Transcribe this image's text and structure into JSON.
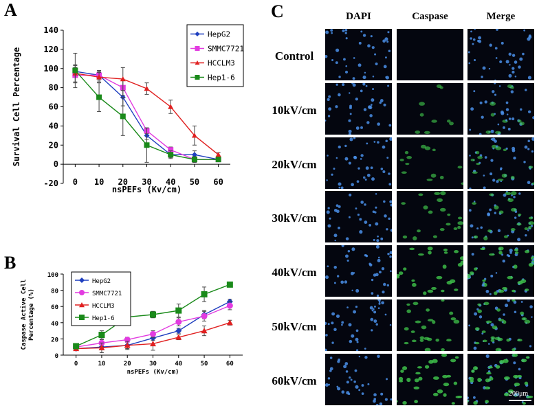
{
  "panel_labels": {
    "a": "A",
    "b": "B",
    "c": "C"
  },
  "chart_data": [
    {
      "type": "line",
      "panel": "A",
      "xlabel": "nsPEFs (Kv/cm)",
      "ylabel": "Survival Cell Percentage",
      "x": [
        0,
        10,
        20,
        30,
        40,
        50,
        60
      ],
      "xlim": [
        -5,
        65
      ],
      "ylim": [
        -20,
        140
      ],
      "yticks": [
        -20,
        0,
        20,
        40,
        60,
        80,
        100,
        120,
        140
      ],
      "legend_position": "top-right",
      "series": [
        {
          "name": "HepG2",
          "color": "#1f3fbf",
          "marker": "diamond",
          "values": [
            97,
            93,
            70,
            30,
            10,
            10,
            5
          ],
          "errors": [
            6,
            5,
            9,
            4,
            3,
            4,
            2
          ]
        },
        {
          "name": "SMMC7721",
          "color": "#e23be0",
          "marker": "square",
          "values": [
            93,
            93,
            80,
            35,
            15,
            5,
            5
          ],
          "errors": [
            8,
            4,
            8,
            3,
            3,
            3,
            2
          ]
        },
        {
          "name": "HCCLM3",
          "color": "#e02020",
          "marker": "triangle",
          "values": [
            95,
            91,
            89,
            79,
            60,
            30,
            10
          ],
          "errors": [
            9,
            5,
            12,
            6,
            7,
            10,
            2
          ]
        },
        {
          "name": "Hep1-6",
          "color": "#1a8a1a",
          "marker": "square",
          "values": [
            98,
            70,
            50,
            20,
            10,
            5,
            5
          ],
          "errors": [
            18,
            15,
            20,
            18,
            4,
            3,
            2
          ]
        }
      ]
    },
    {
      "type": "line",
      "panel": "B",
      "xlabel": "nsPEFs (Kv/cm)",
      "ylabel_lines": [
        "Caspase Active Cell",
        "Percentage (%)"
      ],
      "x": [
        0,
        10,
        20,
        30,
        40,
        50,
        60
      ],
      "xlim": [
        -5,
        65
      ],
      "ylim": [
        0,
        100
      ],
      "yticks": [
        0,
        20,
        40,
        60,
        80,
        100
      ],
      "legend_position": "top-left",
      "series": [
        {
          "name": "HepG2",
          "color": "#1f3fbf",
          "marker": "diamond",
          "values": [
            8,
            10,
            12,
            21,
            30,
            50,
            66
          ],
          "errors": [
            2,
            3,
            4,
            3,
            3,
            5,
            3
          ]
        },
        {
          "name": "SMMC7721",
          "color": "#e23be0",
          "marker": "circle",
          "values": [
            10,
            15,
            19,
            26,
            41,
            48,
            61
          ],
          "errors": [
            2,
            4,
            3,
            4,
            5,
            6,
            5
          ]
        },
        {
          "name": "HCCLM3",
          "color": "#e02020",
          "marker": "triangle",
          "values": [
            8,
            9,
            12,
            14,
            22,
            30,
            40
          ],
          "errors": [
            2,
            6,
            5,
            8,
            3,
            6,
            3
          ]
        },
        {
          "name": "Hep1-6",
          "color": "#1a8a1a",
          "marker": "square",
          "values": [
            11,
            25,
            47,
            50,
            55,
            75,
            87
          ],
          "errors": [
            3,
            5,
            7,
            4,
            8,
            9,
            3
          ]
        }
      ]
    }
  ],
  "micrographs": {
    "columns": [
      "DAPI",
      "Caspase",
      "Merge"
    ],
    "rows": [
      {
        "label": "Control",
        "green": 0.05
      },
      {
        "label": "10kV/cm",
        "green": 0.25
      },
      {
        "label": "20kV/cm",
        "green": 0.35
      },
      {
        "label": "30kV/cm",
        "green": 0.45
      },
      {
        "label": "40kV/cm",
        "green": 0.75
      },
      {
        "label": "50kV/cm",
        "green": 0.6
      },
      {
        "label": "60kV/cm",
        "green": 0.85
      }
    ],
    "scale_bar": "200μm"
  }
}
